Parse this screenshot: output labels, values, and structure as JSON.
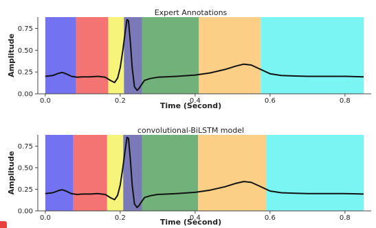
{
  "colors": {
    "segments": [
      "#7373f2",
      "#f47474",
      "#f6f47a",
      "#7b7ab9",
      "#72b27a",
      "#fbcf86",
      "#7bf4f4"
    ],
    "trace": "#111111"
  },
  "chart_data": [
    {
      "type": "line",
      "title": "Expert Annotations",
      "xlabel": "Time (Second)",
      "ylabel": "Amplitude",
      "xlim": [
        -0.02,
        0.87
      ],
      "ylim": [
        0.0,
        0.88
      ],
      "xticks": [
        "0.0",
        "0.2",
        "0.4",
        "0.6",
        "0.8"
      ],
      "yticks": [
        "0.00",
        "0.25",
        "0.50",
        "0.75"
      ],
      "segments": [
        {
          "start": 0.0,
          "end": 0.082
        },
        {
          "start": 0.082,
          "end": 0.168
        },
        {
          "start": 0.168,
          "end": 0.21
        },
        {
          "start": 0.21,
          "end": 0.258
        },
        {
          "start": 0.258,
          "end": 0.41
        },
        {
          "start": 0.41,
          "end": 0.575
        },
        {
          "start": 0.575,
          "end": 0.85
        }
      ],
      "series": [
        {
          "x": [
            0.0,
            0.02,
            0.035,
            0.045,
            0.055,
            0.07,
            0.085,
            0.1,
            0.12,
            0.14,
            0.16,
            0.175,
            0.185,
            0.193,
            0.2,
            0.207,
            0.213,
            0.218,
            0.222,
            0.227,
            0.232,
            0.238,
            0.245,
            0.25,
            0.256,
            0.265,
            0.28,
            0.3,
            0.35,
            0.4,
            0.44,
            0.48,
            0.51,
            0.53,
            0.55,
            0.57,
            0.6,
            0.63,
            0.66,
            0.7,
            0.75,
            0.8,
            0.85
          ],
          "y": [
            0.2,
            0.21,
            0.235,
            0.245,
            0.23,
            0.2,
            0.19,
            0.195,
            0.195,
            0.2,
            0.19,
            0.15,
            0.13,
            0.18,
            0.3,
            0.5,
            0.7,
            0.85,
            0.84,
            0.6,
            0.3,
            0.08,
            0.04,
            0.06,
            0.1,
            0.155,
            0.175,
            0.19,
            0.2,
            0.215,
            0.24,
            0.28,
            0.32,
            0.34,
            0.33,
            0.29,
            0.23,
            0.21,
            0.205,
            0.2,
            0.2,
            0.2,
            0.195
          ]
        }
      ]
    },
    {
      "type": "line",
      "title": "convolutional-BiLSTM model",
      "xlabel": "Time (Second)",
      "ylabel": "Amplitude",
      "xlim": [
        -0.02,
        0.87
      ],
      "ylim": [
        0.0,
        0.88
      ],
      "xticks": [
        "0.0",
        "0.2",
        "0.4",
        "0.6",
        "0.8"
      ],
      "yticks": [
        "0.00",
        "0.25",
        "0.50",
        "0.75"
      ],
      "segments": [
        {
          "start": 0.0,
          "end": 0.075
        },
        {
          "start": 0.075,
          "end": 0.165
        },
        {
          "start": 0.165,
          "end": 0.208
        },
        {
          "start": 0.208,
          "end": 0.258
        },
        {
          "start": 0.258,
          "end": 0.408
        },
        {
          "start": 0.408,
          "end": 0.59
        },
        {
          "start": 0.59,
          "end": 0.85
        }
      ],
      "series": [
        {
          "x": [
            0.0,
            0.02,
            0.035,
            0.045,
            0.055,
            0.07,
            0.085,
            0.1,
            0.12,
            0.14,
            0.16,
            0.175,
            0.185,
            0.193,
            0.2,
            0.207,
            0.213,
            0.218,
            0.222,
            0.227,
            0.232,
            0.238,
            0.245,
            0.25,
            0.256,
            0.265,
            0.28,
            0.3,
            0.35,
            0.4,
            0.44,
            0.48,
            0.51,
            0.53,
            0.55,
            0.57,
            0.6,
            0.63,
            0.66,
            0.7,
            0.75,
            0.8,
            0.85
          ],
          "y": [
            0.2,
            0.21,
            0.235,
            0.245,
            0.23,
            0.2,
            0.19,
            0.195,
            0.195,
            0.2,
            0.19,
            0.15,
            0.13,
            0.18,
            0.3,
            0.5,
            0.7,
            0.85,
            0.84,
            0.6,
            0.3,
            0.08,
            0.04,
            0.06,
            0.1,
            0.155,
            0.175,
            0.19,
            0.2,
            0.215,
            0.24,
            0.28,
            0.32,
            0.34,
            0.33,
            0.29,
            0.23,
            0.21,
            0.205,
            0.2,
            0.2,
            0.2,
            0.195
          ]
        }
      ]
    }
  ]
}
